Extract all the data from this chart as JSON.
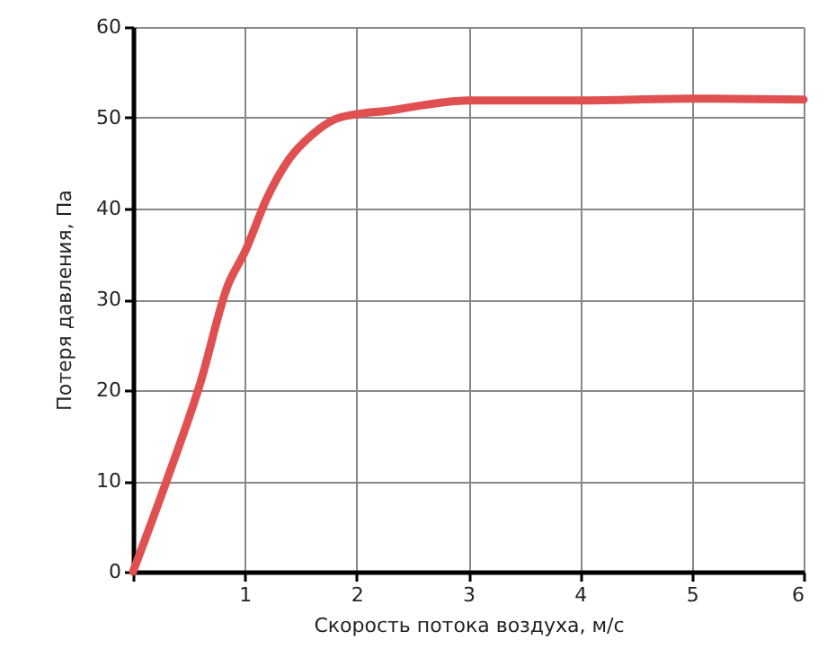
{
  "chart_data": {
    "type": "line",
    "xlabel": "Скорость потока воздуха, м/с",
    "ylabel": "Потеря давления, Па",
    "xlim": [
      0,
      6
    ],
    "xticks": [
      {
        "value": 0,
        "label": null
      },
      1,
      2,
      3,
      4,
      5,
      6
    ],
    "ylim": [
      0,
      60
    ],
    "yticks": [
      0,
      10,
      20,
      30,
      40,
      50,
      60
    ],
    "grid": true,
    "marker": "none",
    "line_style": "solid",
    "series": [
      {
        "color": "#e05050",
        "x": [
          0,
          0.3,
          0.6,
          0.85,
          1,
          1.2,
          1.4,
          1.6,
          1.8,
          2,
          2.3,
          2.6,
          3,
          4,
          5,
          6
        ],
        "values": [
          0,
          10,
          20.7,
          31.6,
          35.2,
          41.2,
          45.5,
          48.1,
          49.8,
          50.4,
          50.8,
          51.4,
          51.9,
          51.9,
          52.1,
          52
        ]
      }
    ]
  }
}
